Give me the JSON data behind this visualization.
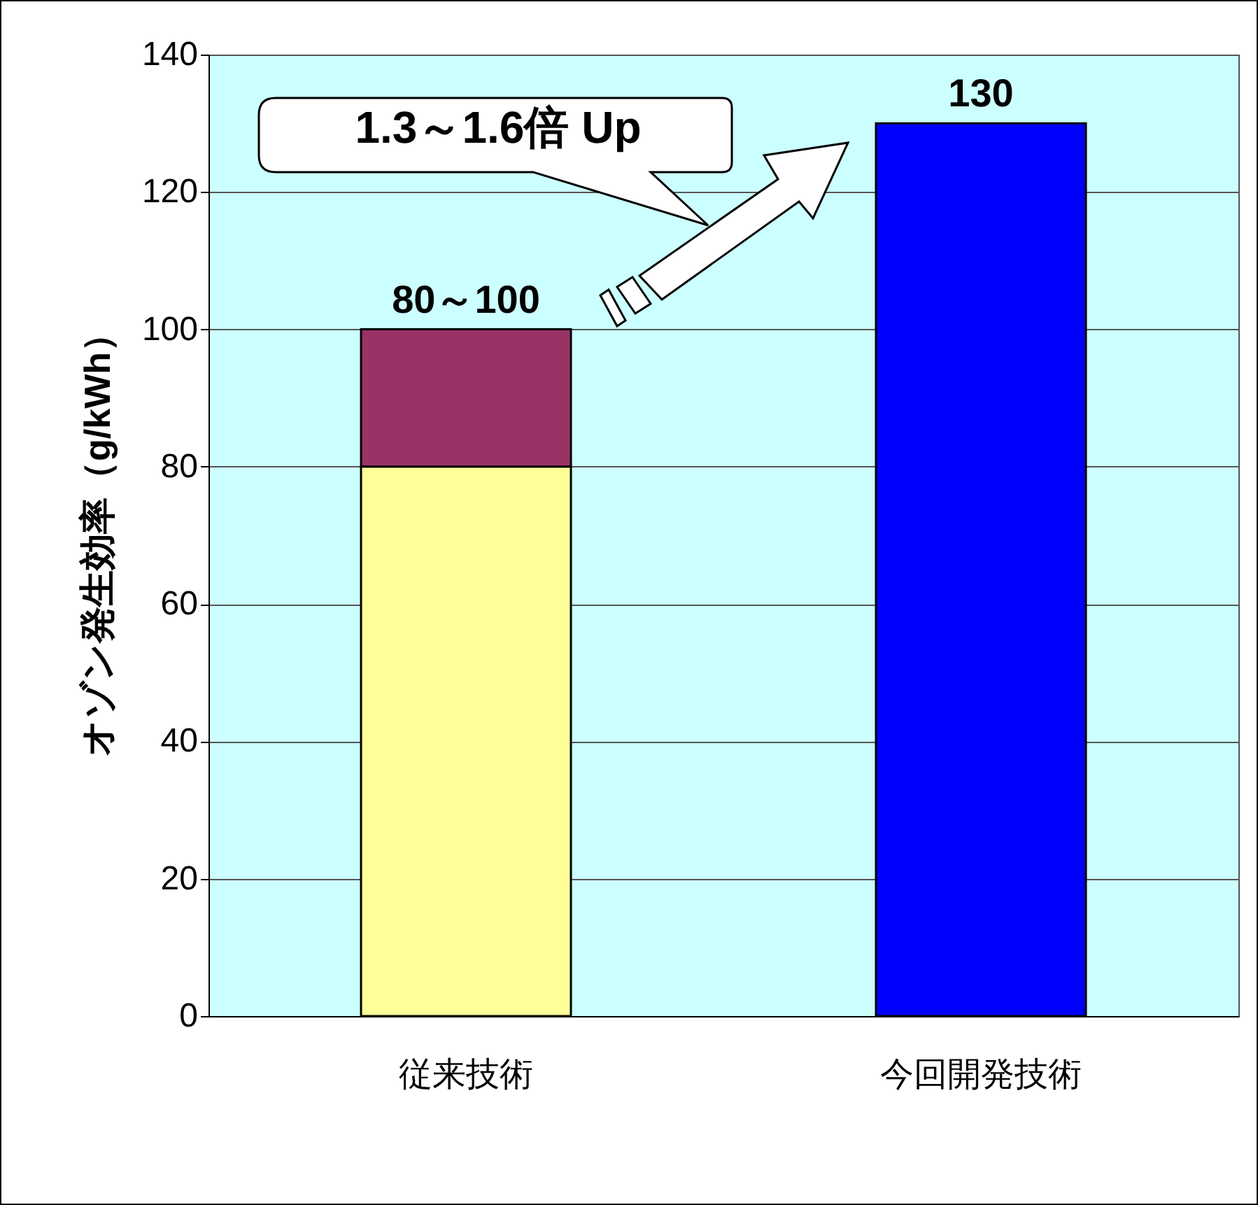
{
  "chart_data": {
    "type": "bar",
    "stacked": true,
    "ylabel": "オゾン発生効率（g/kWh）",
    "categories": [
      "従来技術",
      "今回開発技術"
    ],
    "series": [
      {
        "colors": [
          "#ffff99",
          "#0000ff"
        ],
        "values": [
          80,
          130
        ]
      },
      {
        "color": "#993366",
        "values": [
          20,
          null
        ]
      }
    ],
    "totals": [
      "80～100",
      "130"
    ],
    "annotations": [
      "1.3～1.6倍 Up"
    ],
    "ylim": [
      0,
      140
    ],
    "yticks": [
      0,
      20,
      40,
      60,
      80,
      100,
      120,
      140
    ],
    "grid": "y"
  }
}
